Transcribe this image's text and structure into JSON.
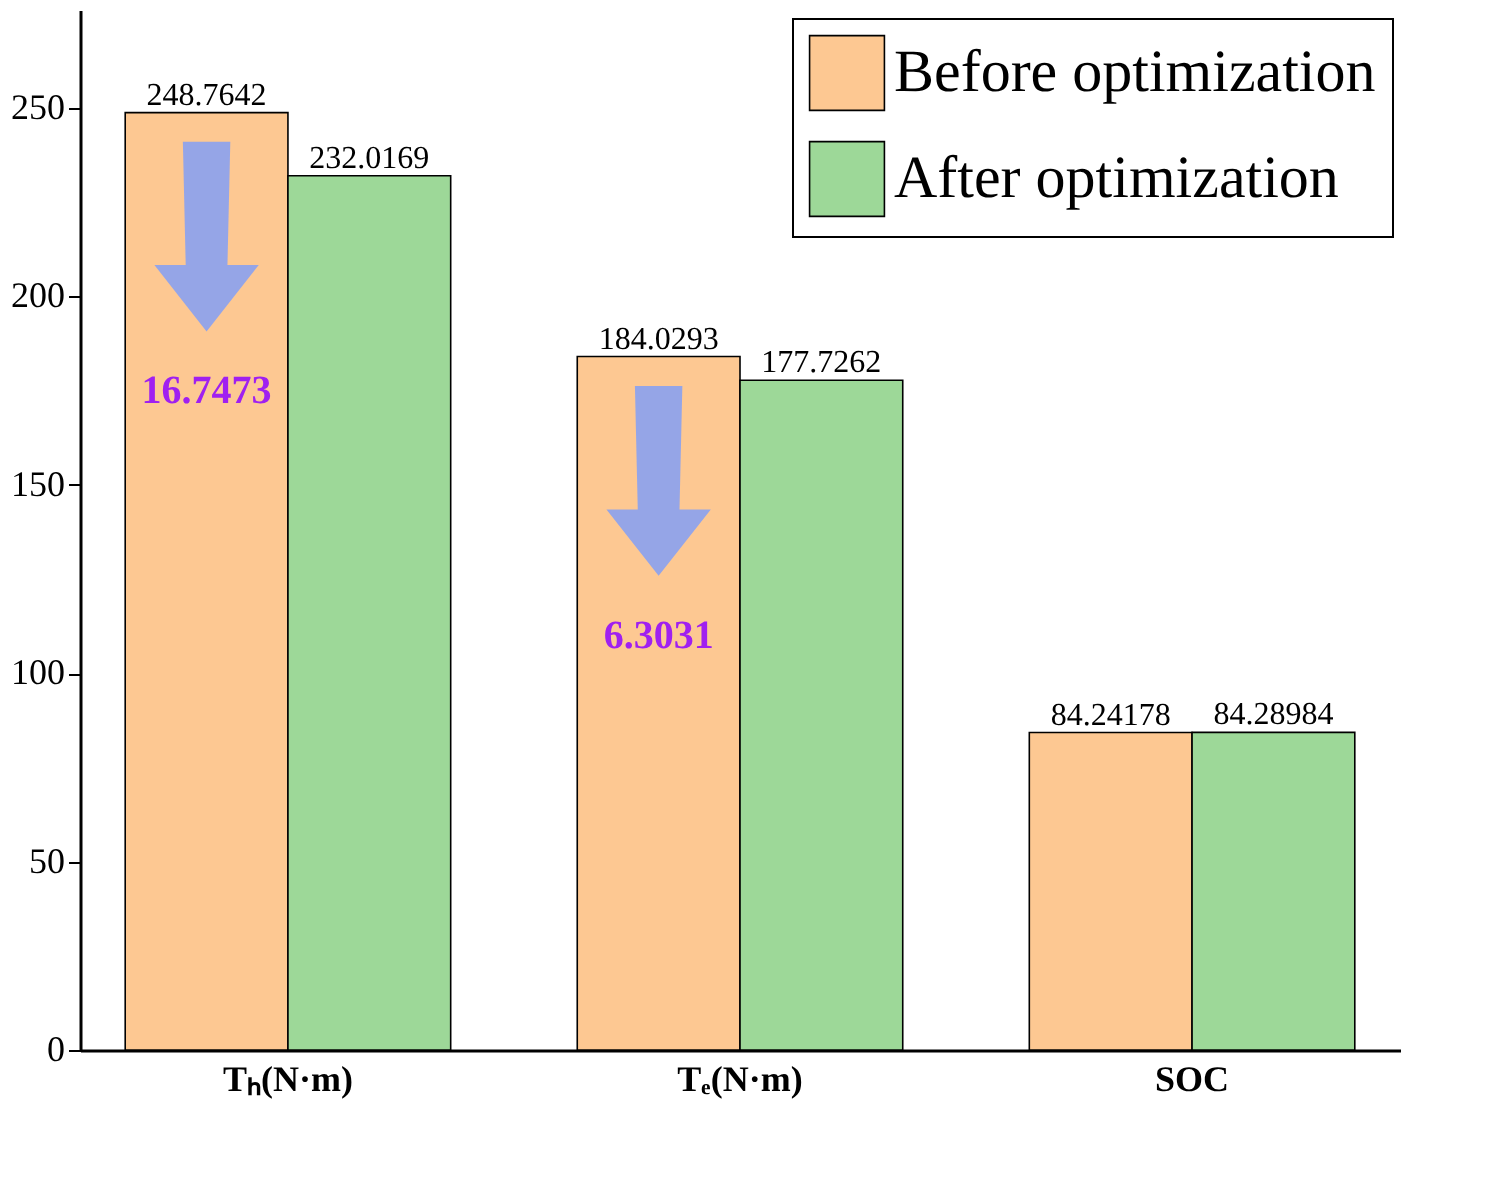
{
  "chart_data": {
    "type": "bar",
    "categories": [
      "Tₕ(N·m)",
      "Tₑ(N·m)",
      "SOC"
    ],
    "series": [
      {
        "name": "Before optimization",
        "color": "#fdc892",
        "values": [
          248.7642,
          184.0293,
          84.24178
        ]
      },
      {
        "name": "After optimization",
        "color": "#9dd898",
        "values": [
          232.0169,
          177.7262,
          84.28984
        ]
      }
    ],
    "ylim": [
      0,
      276
    ],
    "yticks": [
      0,
      50,
      100,
      150,
      200,
      250
    ],
    "data_labels": true,
    "legend": "top right",
    "grid": false,
    "annotations": [
      {
        "text": "16.7473",
        "x": "Tₕ(N·m)",
        "y": 175
      },
      {
        "text": "6.3031",
        "x": "Tₑ(N·m)",
        "y": 110
      }
    ]
  }
}
